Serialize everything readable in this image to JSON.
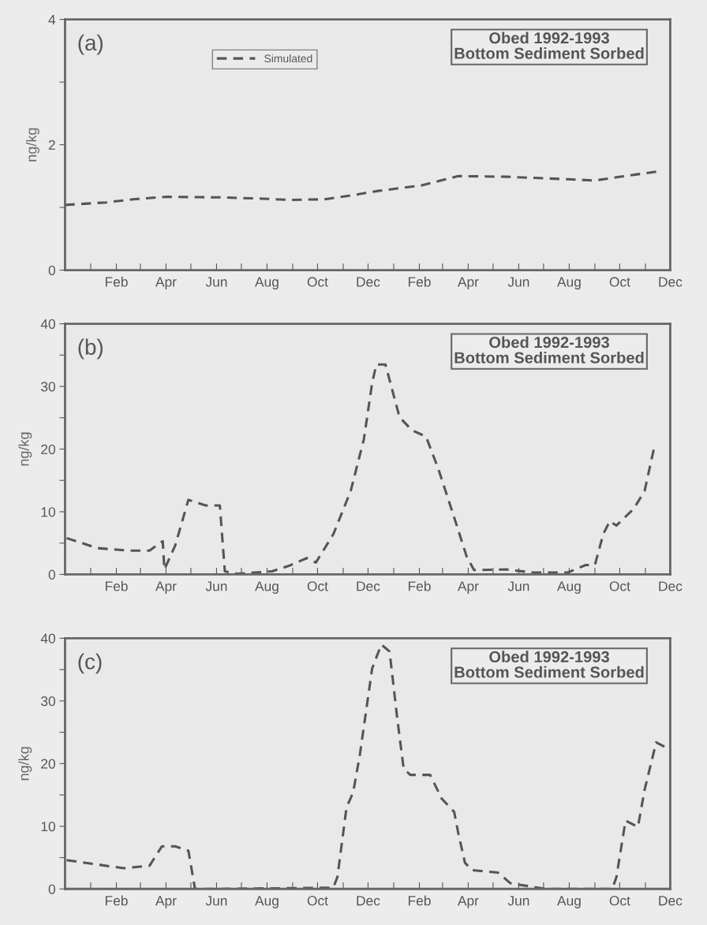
{
  "chart_data": [
    {
      "type": "line",
      "title": "Obed 1992-1993\nBottom Sediment Sorbed",
      "ylabel": "ng/kg",
      "annotations": [
        "(a)"
      ],
      "legend": "top",
      "grid": false,
      "line_style": "dashed",
      "x": [
        "1991-12-01",
        "1992-01-20",
        "1992-02-21",
        "1992-04-02",
        "1992-06-05",
        "1992-07-27",
        "1992-08-28",
        "1992-10-09",
        "1992-11-10",
        "1992-12-11",
        "1993-02-03",
        "1993-03-05",
        "1993-03-20",
        "1993-05-17",
        "1993-07-30",
        "1993-09-01",
        "1993-10-02",
        "1993-11-14"
      ],
      "series": [
        {
          "name": "Simulated",
          "color": "#555555",
          "values": [
            1.04,
            1.08,
            1.13,
            1.17,
            1.16,
            1.14,
            1.12,
            1.13,
            1.19,
            1.26,
            1.35,
            1.45,
            1.5,
            1.49,
            1.45,
            1.43,
            1.49,
            1.57
          ]
        }
      ],
      "xlim": [
        "1991-12-01",
        "1993-12-01"
      ],
      "ylim": [
        0,
        4
      ],
      "yticks": [
        0,
        {
          "value": 1,
          "label": null
        },
        2,
        {
          "value": 3,
          "label": null
        },
        4
      ],
      "xticks": [
        {
          "value": "1992-01-01",
          "label": null
        },
        {
          "value": "1992-02-01",
          "label": "Feb"
        },
        {
          "value": "1992-03-01",
          "label": null
        },
        {
          "value": "1992-04-01",
          "label": "Apr"
        },
        {
          "value": "1992-05-01",
          "label": null
        },
        {
          "value": "1992-06-01",
          "label": "Jun"
        },
        {
          "value": "1992-07-01",
          "label": null
        },
        {
          "value": "1992-08-01",
          "label": "Aug"
        },
        {
          "value": "1992-09-01",
          "label": null
        },
        {
          "value": "1992-10-01",
          "label": "Oct"
        },
        {
          "value": "1992-11-01",
          "label": null
        },
        {
          "value": "1992-12-01",
          "label": "Dec"
        },
        {
          "value": "1993-01-01",
          "label": null
        },
        {
          "value": "1993-02-01",
          "label": "Feb"
        },
        {
          "value": "1993-03-01",
          "label": null
        },
        {
          "value": "1993-04-01",
          "label": "Apr"
        },
        {
          "value": "1993-05-01",
          "label": null
        },
        {
          "value": "1993-06-01",
          "label": "Jun"
        },
        {
          "value": "1993-07-01",
          "label": null
        },
        {
          "value": "1993-08-01",
          "label": "Aug"
        },
        {
          "value": "1993-09-01",
          "label": null
        },
        {
          "value": "1993-10-01",
          "label": "Oct"
        },
        {
          "value": "1993-11-01",
          "label": null
        },
        {
          "value": "1993-12-01",
          "label": "Dec"
        }
      ]
    },
    {
      "type": "line",
      "title": "Obed 1992-1993\nBottom Sediment Sorbed",
      "ylabel": "ng/kg",
      "annotations": [
        "(b)"
      ],
      "grid": false,
      "line_style": "dashed",
      "x": [
        "1991-12-03",
        "1992-01-09",
        "1992-02-15",
        "1992-03-12",
        "1992-03-28",
        "1992-03-30",
        "1992-04-12",
        "1992-04-28",
        "1992-05-19",
        "1992-06-05",
        "1992-06-11",
        "1992-06-26",
        "1992-08-07",
        "1992-08-28",
        "1992-09-18",
        "1992-09-29",
        "1992-10-20",
        "1992-11-10",
        "1992-11-26",
        "1992-12-06",
        "1992-12-11",
        "1992-12-22",
        "1993-01-08",
        "1993-01-23",
        "1993-02-09",
        "1993-02-24",
        "1993-03-15",
        "1993-03-30",
        "1993-04-08",
        "1993-05-17",
        "1993-06-18",
        "1993-07-30",
        "1993-08-21",
        "1993-09-01",
        "1993-09-11",
        "1993-09-19",
        "1993-09-27",
        "1993-10-18",
        "1993-10-31",
        "1993-11-11"
      ],
      "series": [
        {
          "color": "#555555",
          "values": [
            5.8,
            4.2,
            3.8,
            3.8,
            5.3,
            0.8,
            4.6,
            11.9,
            11.0,
            11.0,
            0.5,
            0.1,
            0.5,
            1.4,
            2.6,
            1.9,
            6.4,
            13.3,
            21.6,
            30.6,
            33.5,
            33.5,
            25.1,
            23.0,
            22.0,
            16.8,
            9.1,
            2.9,
            0.7,
            0.8,
            0.3,
            0.3,
            1.5,
            1.5,
            6.4,
            8.5,
            7.8,
            10.5,
            13.3,
            19.9
          ]
        }
      ],
      "xlim": [
        "1991-12-01",
        "1993-12-01"
      ],
      "ylim": [
        0,
        40
      ],
      "yticks": [
        0,
        {
          "value": 5,
          "label": null
        },
        10,
        {
          "value": 15,
          "label": null
        },
        20,
        {
          "value": 25,
          "label": null
        },
        30,
        {
          "value": 35,
          "label": null
        },
        40
      ],
      "xticks": [
        {
          "value": "1992-01-01",
          "label": null
        },
        {
          "value": "1992-02-01",
          "label": "Feb"
        },
        {
          "value": "1992-03-01",
          "label": null
        },
        {
          "value": "1992-04-01",
          "label": "Apr"
        },
        {
          "value": "1992-05-01",
          "label": null
        },
        {
          "value": "1992-06-01",
          "label": "Jun"
        },
        {
          "value": "1992-07-01",
          "label": null
        },
        {
          "value": "1992-08-01",
          "label": "Aug"
        },
        {
          "value": "1992-09-01",
          "label": null
        },
        {
          "value": "1992-10-01",
          "label": "Oct"
        },
        {
          "value": "1992-11-01",
          "label": null
        },
        {
          "value": "1992-12-01",
          "label": "Dec"
        },
        {
          "value": "1993-01-01",
          "label": null
        },
        {
          "value": "1993-02-01",
          "label": "Feb"
        },
        {
          "value": "1993-03-01",
          "label": null
        },
        {
          "value": "1993-04-01",
          "label": "Apr"
        },
        {
          "value": "1993-05-01",
          "label": null
        },
        {
          "value": "1993-06-01",
          "label": "Jun"
        },
        {
          "value": "1993-07-01",
          "label": null
        },
        {
          "value": "1993-08-01",
          "label": "Aug"
        },
        {
          "value": "1993-09-01",
          "label": null
        },
        {
          "value": "1993-10-01",
          "label": "Oct"
        },
        {
          "value": "1993-11-01",
          "label": null
        },
        {
          "value": "1993-12-01",
          "label": "Dec"
        }
      ]
    },
    {
      "type": "line",
      "title": "Obed 1992-1993\nBottom Sediment Sorbed",
      "ylabel": "ng/kg",
      "annotations": [
        "(c)"
      ],
      "grid": false,
      "line_style": "dashed",
      "x": [
        "1991-12-03",
        "1992-01-09",
        "1992-02-10",
        "1992-03-12",
        "1992-03-27",
        "1992-04-12",
        "1992-04-28",
        "1992-05-06",
        "1992-06-05",
        "1992-10-20",
        "1992-10-25",
        "1992-11-05",
        "1992-11-13",
        "1992-11-21",
        "1992-12-06",
        "1992-12-17",
        "1992-12-27",
        "1993-01-05",
        "1993-01-13",
        "1993-01-21",
        "1993-02-14",
        "1993-02-28",
        "1993-03-15",
        "1993-03-20",
        "1993-03-28",
        "1993-04-05",
        "1993-05-07",
        "1993-05-22",
        "1993-07-04",
        "1993-09-22",
        "1993-09-27",
        "1993-10-08",
        "1993-10-23",
        "1993-10-31",
        "1993-11-14",
        "1993-11-24"
      ],
      "series": [
        {
          "color": "#555555",
          "values": [
            4.6,
            3.9,
            3.3,
            3.7,
            6.8,
            6.8,
            6.1,
            0,
            0,
            0.2,
            1.9,
            13.0,
            15.4,
            21.3,
            35.2,
            39.0,
            37.9,
            27.5,
            19.2,
            18.2,
            18.2,
            14.4,
            12.3,
            8.9,
            4.2,
            3.0,
            2.6,
            0.9,
            0,
            0,
            1.9,
            10.9,
            9.9,
            15.8,
            23.4,
            22.7
          ]
        }
      ],
      "xlim": [
        "1991-12-01",
        "1993-12-01"
      ],
      "ylim": [
        0,
        40
      ],
      "yticks": [
        0,
        {
          "value": 5,
          "label": null
        },
        10,
        {
          "value": 15,
          "label": null
        },
        20,
        {
          "value": 25,
          "label": null
        },
        30,
        {
          "value": 35,
          "label": null
        },
        40
      ],
      "xticks": [
        {
          "value": "1992-01-01",
          "label": null
        },
        {
          "value": "1992-02-01",
          "label": "Feb"
        },
        {
          "value": "1992-03-01",
          "label": null
        },
        {
          "value": "1992-04-01",
          "label": "Apr"
        },
        {
          "value": "1992-05-01",
          "label": null
        },
        {
          "value": "1992-06-01",
          "label": "Jun"
        },
        {
          "value": "1992-07-01",
          "label": null
        },
        {
          "value": "1992-08-01",
          "label": "Aug"
        },
        {
          "value": "1992-09-01",
          "label": null
        },
        {
          "value": "1992-10-01",
          "label": "Oct"
        },
        {
          "value": "1992-11-01",
          "label": null
        },
        {
          "value": "1992-12-01",
          "label": "Dec"
        },
        {
          "value": "1993-01-01",
          "label": null
        },
        {
          "value": "1993-02-01",
          "label": "Feb"
        },
        {
          "value": "1993-03-01",
          "label": null
        },
        {
          "value": "1993-04-01",
          "label": "Apr"
        },
        {
          "value": "1993-05-01",
          "label": null
        },
        {
          "value": "1993-06-01",
          "label": "Jun"
        },
        {
          "value": "1993-07-01",
          "label": null
        },
        {
          "value": "1993-08-01",
          "label": "Aug"
        },
        {
          "value": "1993-09-01",
          "label": null
        },
        {
          "value": "1993-10-01",
          "label": "Oct"
        },
        {
          "value": "1993-11-01",
          "label": null
        },
        {
          "value": "1993-12-01",
          "label": "Dec"
        }
      ]
    }
  ]
}
